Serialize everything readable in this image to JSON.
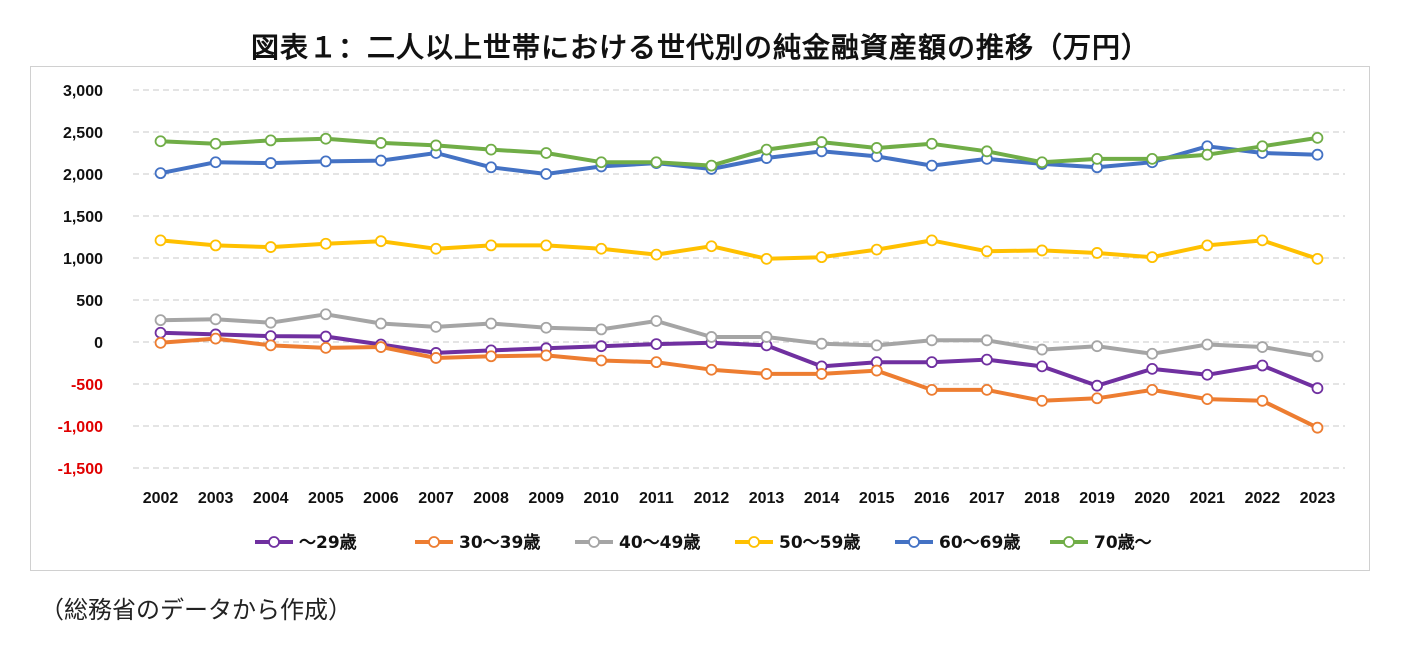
{
  "title": "図表１：二人以上世帯における世代別の純金融資産額の推移（万円）",
  "source": "（総務省のデータから作成）",
  "colors": {
    "axis_positive": "#111111",
    "axis_negative": "#e00000",
    "grid": "#c8c8c8"
  },
  "chart_data": {
    "type": "line",
    "title": "図表１：二人以上世帯における世代別の純金融資産額の推移（万円）",
    "xlabel": "",
    "ylabel": "",
    "x": [
      "2002",
      "2003",
      "2004",
      "2005",
      "2006",
      "2007",
      "2008",
      "2009",
      "2010",
      "2011",
      "2012",
      "2013",
      "2014",
      "2015",
      "2016",
      "2017",
      "2018",
      "2019",
      "2020",
      "2021",
      "2022",
      "2023"
    ],
    "ylim": [
      -1500,
      3000
    ],
    "yticks": [
      3000,
      2500,
      2000,
      1500,
      1000,
      500,
      0,
      -500,
      -1000,
      -1500
    ],
    "ytick_labels": [
      "3,000",
      "2,500",
      "2,000",
      "1,500",
      "1,000",
      "500",
      "0",
      "-500",
      "-1,000",
      "-1,500"
    ],
    "grid": true,
    "legend_position": "bottom",
    "series": [
      {
        "name": "～29歳",
        "color": "#7030a0",
        "values": [
          110,
          90,
          70,
          65,
          -30,
          -130,
          -100,
          -75,
          -50,
          -25,
          -10,
          -40,
          -290,
          -240,
          -240,
          -210,
          -290,
          -520,
          -320,
          -390,
          -280,
          -550
        ]
      },
      {
        "name": "30～39歳",
        "color": "#ed7d31",
        "values": [
          -10,
          40,
          -40,
          -70,
          -60,
          -190,
          -170,
          -160,
          -220,
          -240,
          -330,
          -380,
          -380,
          -340,
          -570,
          -570,
          -700,
          -670,
          -570,
          -680,
          -700,
          -1020
        ]
      },
      {
        "name": "40～49歳",
        "color": "#a5a5a5",
        "values": [
          260,
          270,
          230,
          330,
          220,
          180,
          220,
          170,
          150,
          250,
          60,
          60,
          -20,
          -40,
          20,
          20,
          -90,
          -50,
          -140,
          -30,
          -60,
          -170
        ]
      },
      {
        "name": "50～59歳",
        "color": "#ffc000",
        "values": [
          1210,
          1150,
          1130,
          1170,
          1200,
          1110,
          1150,
          1150,
          1110,
          1040,
          1140,
          990,
          1010,
          1100,
          1210,
          1080,
          1090,
          1060,
          1010,
          1150,
          1210,
          990
        ]
      },
      {
        "name": "60～69歳",
        "color": "#4472c4",
        "values": [
          2010,
          2140,
          2130,
          2150,
          2160,
          2250,
          2080,
          2000,
          2090,
          2130,
          2060,
          2190,
          2270,
          2210,
          2100,
          2180,
          2120,
          2080,
          2140,
          2330,
          2250,
          2230
        ]
      },
      {
        "name": "70歳～",
        "color": "#70ad47",
        "values": [
          2390,
          2360,
          2400,
          2420,
          2370,
          2340,
          2290,
          2250,
          2140,
          2140,
          2100,
          2290,
          2380,
          2310,
          2360,
          2270,
          2140,
          2180,
          2180,
          2230,
          2330,
          2430
        ]
      }
    ]
  }
}
